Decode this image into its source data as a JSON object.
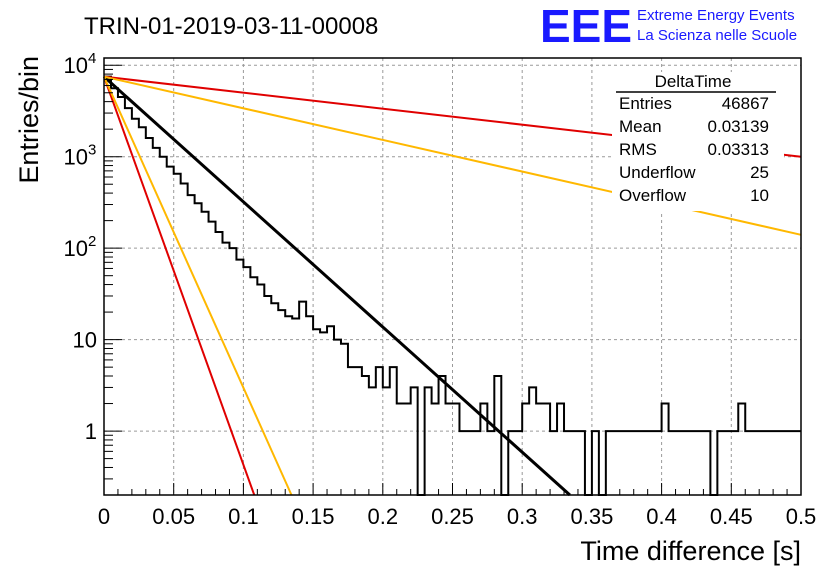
{
  "header": {
    "title": "TRIN-01-2019-03-11-00008",
    "logo_text": "EEE",
    "logo_line1": "Extreme Energy Events",
    "logo_line2": "La Scienza nelle Scuole",
    "logo_color": "#1a1aff"
  },
  "stats": {
    "name": "DeltaTime",
    "rows": [
      {
        "label": "Entries",
        "value": "46867"
      },
      {
        "label": "Mean",
        "value": "0.03139"
      },
      {
        "label": "RMS",
        "value": "0.03313"
      },
      {
        "label": "Underflow",
        "value": "25"
      },
      {
        "label": "Overflow",
        "value": "10"
      }
    ]
  },
  "chart_data": {
    "type": "line",
    "title": "TRIN-01-2019-03-11-00008",
    "xlabel": "Time difference [s]",
    "ylabel": "Entries/bin",
    "xlim": [
      0,
      0.5
    ],
    "ylim": [
      0.2,
      12000
    ],
    "yscale": "log",
    "grid": true,
    "x_ticks": [
      "0",
      "0.05",
      "0.1",
      "0.15",
      "0.2",
      "0.25",
      "0.3",
      "0.35",
      "0.4",
      "0.45",
      "0.5"
    ],
    "y_ticks": [
      {
        "label": "1",
        "value": 1
      },
      {
        "label": "10",
        "value": 10
      },
      {
        "label": "10",
        "sup": "2",
        "value": 100
      },
      {
        "label": "10",
        "sup": "3",
        "value": 1000
      },
      {
        "label": "10",
        "sup": "4",
        "value": 10000
      }
    ],
    "histogram": {
      "bin_width": 0.005,
      "color": "#000000",
      "values": [
        7500,
        5600,
        4500,
        3400,
        2600,
        2100,
        1600,
        1250,
        1000,
        780,
        650,
        510,
        380,
        310,
        250,
        195,
        150,
        115,
        100,
        75,
        62,
        48,
        40,
        30,
        25,
        21,
        18,
        17,
        26,
        18,
        13,
        12,
        14,
        10,
        9,
        5,
        5,
        4,
        3,
        5,
        3,
        5,
        2,
        2,
        3,
        0.01,
        3,
        2,
        4,
        2,
        2,
        1,
        1,
        1,
        2,
        1,
        4,
        0.01,
        1,
        1,
        2,
        3,
        2,
        2,
        1,
        2,
        1,
        1,
        1,
        0.01,
        1,
        0.01,
        1,
        1,
        1,
        1,
        1,
        1,
        1,
        1,
        2,
        1,
        1,
        1,
        1,
        1,
        1,
        0.01,
        1,
        1,
        1,
        2,
        1,
        1,
        1,
        1,
        1,
        1,
        1,
        1
      ]
    },
    "fits": [
      {
        "color": "#000000",
        "x": [
          0,
          0.3342
        ],
        "y": [
          7500,
          0.2
        ]
      },
      {
        "color": "#e00000",
        "x": [
          0,
          0.5
        ],
        "y": [
          7500,
          1000
        ]
      },
      {
        "color": "#e00000",
        "x": [
          0,
          0.1078
        ],
        "y": [
          7500,
          0.2
        ]
      },
      {
        "color": "#ffb800",
        "x": [
          0,
          0.5
        ],
        "y": [
          7500,
          140
        ]
      },
      {
        "color": "#ffb800",
        "x": [
          0,
          0.1345
        ],
        "y": [
          7500,
          0.2
        ]
      }
    ]
  }
}
